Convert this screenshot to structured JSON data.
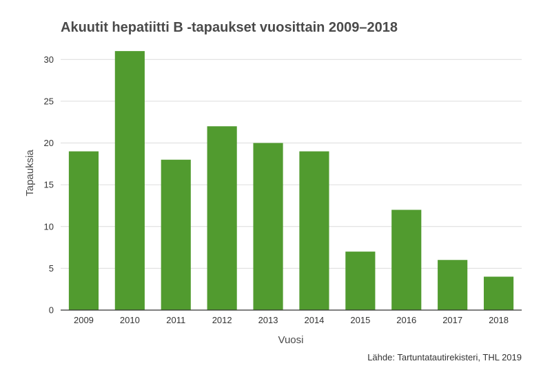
{
  "chart_data": {
    "type": "bar",
    "title": "Akuutit hepatiitti B -tapaukset vuosittain 2009–2018",
    "xlabel": "Vuosi",
    "ylabel": "Tapauksia",
    "categories": [
      "2009",
      "2010",
      "2011",
      "2012",
      "2013",
      "2014",
      "2015",
      "2016",
      "2017",
      "2018"
    ],
    "values": [
      19,
      31,
      18,
      22,
      20,
      19,
      7,
      12,
      6,
      4
    ],
    "ylim": [
      0,
      32
    ],
    "yticks": [
      0,
      5,
      10,
      15,
      20,
      25,
      30
    ],
    "grid": true,
    "legend": "none",
    "bar_color": "#519b2f",
    "source": "Lähde: Tartuntatautirekisteri, THL 2019"
  }
}
